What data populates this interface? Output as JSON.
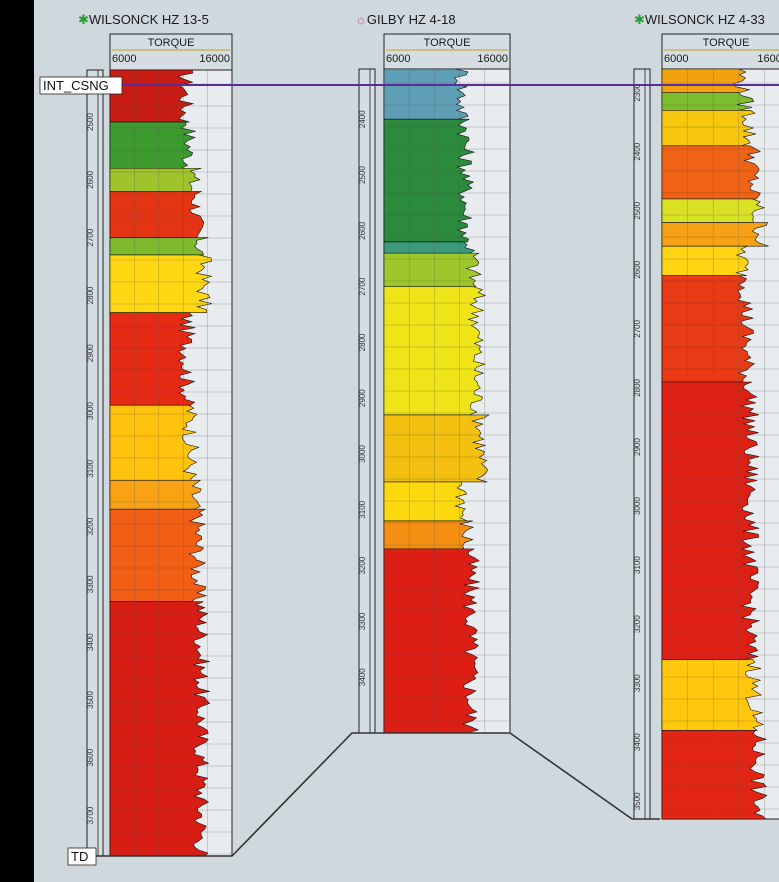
{
  "chart_data": {
    "type": "well-log-correlation",
    "curve_label": "TORQUE",
    "scale_min": 6000,
    "scale_max": 16000,
    "markers": [
      {
        "name": "INT_CSNG",
        "color": "#5b2a9c"
      },
      {
        "name": "TD",
        "color": "#333333"
      }
    ],
    "wells": [
      {
        "name": "WILSONCK HZ 13-5",
        "symbol": "✱",
        "symbol_color": "#2e9a3a",
        "depth_start": 2410,
        "depth_end": 3770,
        "depth_labels": [
          "2500",
          "2600",
          "2700",
          "2800",
          "2900",
          "3000",
          "3100",
          "3200",
          "3300",
          "3400",
          "3500",
          "3600",
          "3700"
        ],
        "color_zones": [
          {
            "from": 2410,
            "to": 2500,
            "color": "#c81d14"
          },
          {
            "from": 2500,
            "to": 2580,
            "color": "#3d9a2e"
          },
          {
            "from": 2580,
            "to": 2620,
            "color": "#9ec32b"
          },
          {
            "from": 2620,
            "to": 2700,
            "color": "#e33414"
          },
          {
            "from": 2700,
            "to": 2730,
            "color": "#7dba2d"
          },
          {
            "from": 2730,
            "to": 2830,
            "color": "#ffd712"
          },
          {
            "from": 2830,
            "to": 2990,
            "color": "#e62a14"
          },
          {
            "from": 2990,
            "to": 3120,
            "color": "#ffc20d"
          },
          {
            "from": 3120,
            "to": 3170,
            "color": "#f9a314"
          },
          {
            "from": 3170,
            "to": 3330,
            "color": "#f25e14"
          },
          {
            "from": 3330,
            "to": 3770,
            "color": "#d81e14"
          }
        ]
      },
      {
        "name": "GILBY HZ 4-18",
        "symbol": "☼",
        "symbol_color": "#d2508a",
        "depth_start": 2310,
        "depth_end": 3500,
        "depth_labels": [
          "2400",
          "2500",
          "2600",
          "2700",
          "2800",
          "2900",
          "3000",
          "3100",
          "3200",
          "3300",
          "3400"
        ],
        "color_zones": [
          {
            "from": 2310,
            "to": 2400,
            "color": "#5f9fb5"
          },
          {
            "from": 2400,
            "to": 2620,
            "color": "#2c8a3c"
          },
          {
            "from": 2620,
            "to": 2640,
            "color": "#3c9a7a"
          },
          {
            "from": 2640,
            "to": 2700,
            "color": "#9fc72c"
          },
          {
            "from": 2700,
            "to": 2930,
            "color": "#eee418"
          },
          {
            "from": 2930,
            "to": 3050,
            "color": "#f4c010"
          },
          {
            "from": 3050,
            "to": 3120,
            "color": "#fcd90e"
          },
          {
            "from": 3120,
            "to": 3170,
            "color": "#f58f14"
          },
          {
            "from": 3170,
            "to": 3500,
            "color": "#dc1e14"
          }
        ]
      },
      {
        "name": "WILSONCK HZ 4-33",
        "symbol": "✱",
        "symbol_color": "#2e9a3a",
        "depth_start": 2260,
        "depth_end": 3530,
        "depth_labels": [
          "2300",
          "2400",
          "2500",
          "2600",
          "2700",
          "2800",
          "2900",
          "3000",
          "3100",
          "3200",
          "3300",
          "3400",
          "3500"
        ],
        "color_zones": [
          {
            "from": 2260,
            "to": 2300,
            "color": "#f2a20e"
          },
          {
            "from": 2300,
            "to": 2330,
            "color": "#7bbd2d"
          },
          {
            "from": 2330,
            "to": 2390,
            "color": "#f7c70d"
          },
          {
            "from": 2390,
            "to": 2480,
            "color": "#f06214"
          },
          {
            "from": 2480,
            "to": 2520,
            "color": "#d8e124"
          },
          {
            "from": 2520,
            "to": 2560,
            "color": "#f6a114"
          },
          {
            "from": 2560,
            "to": 2610,
            "color": "#ffd412"
          },
          {
            "from": 2610,
            "to": 2790,
            "color": "#e83a14"
          },
          {
            "from": 2790,
            "to": 3260,
            "color": "#de2014"
          },
          {
            "from": 3260,
            "to": 3380,
            "color": "#ffc80c"
          },
          {
            "from": 3380,
            "to": 3530,
            "color": "#e32614"
          }
        ]
      }
    ]
  }
}
